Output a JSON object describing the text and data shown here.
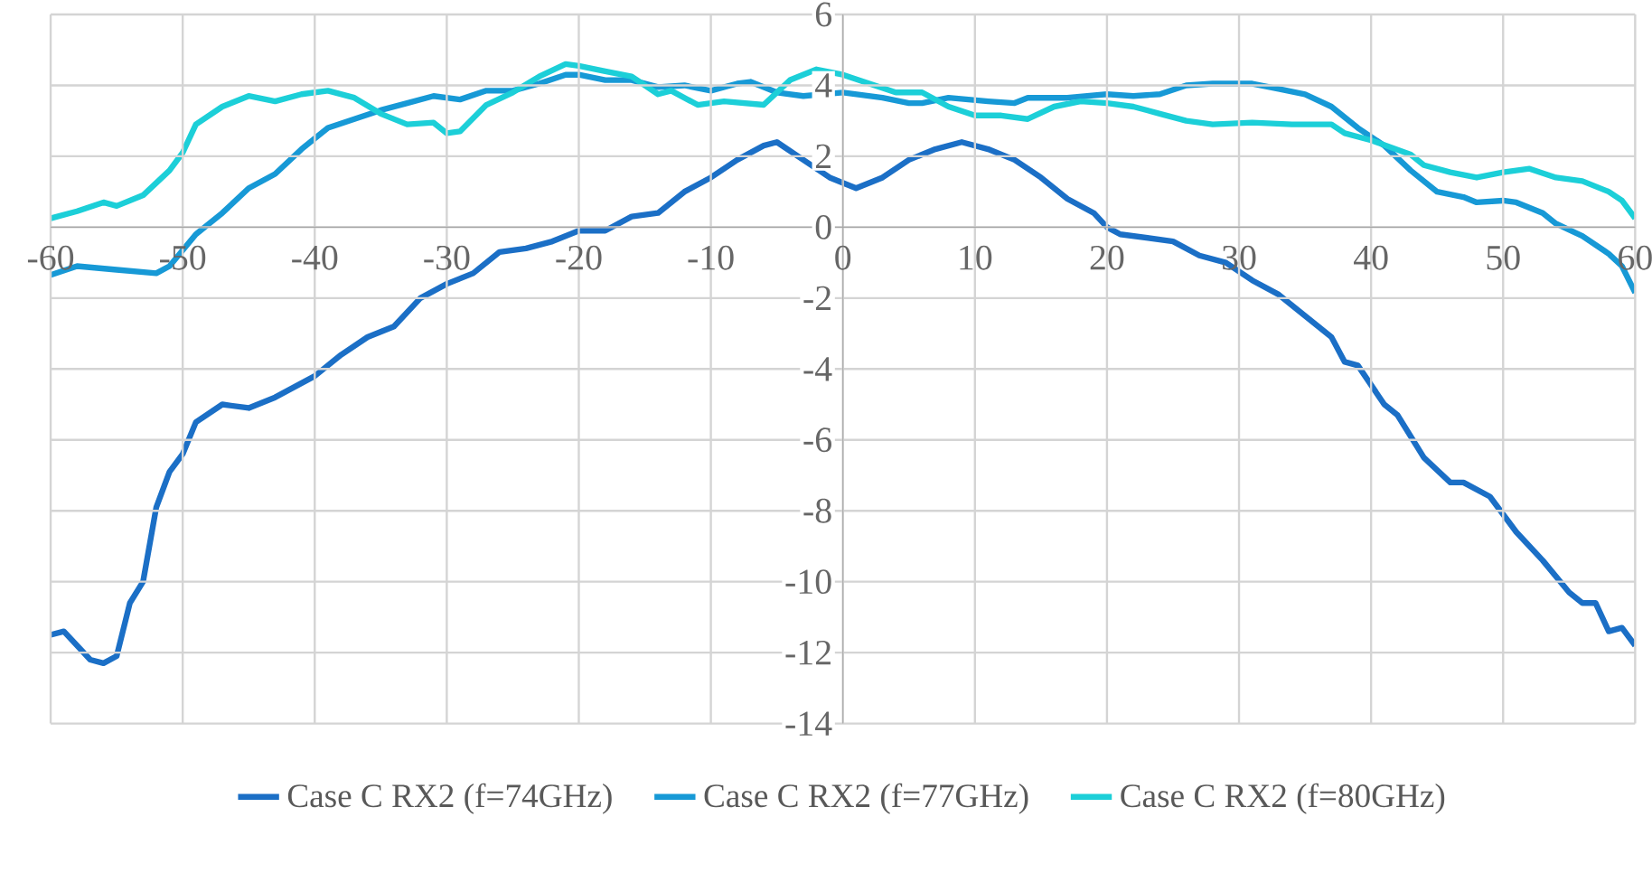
{
  "chart_data": {
    "type": "line",
    "xlim": [
      -60,
      60
    ],
    "ylim": [
      -14,
      6
    ],
    "xticks": [
      -60,
      -50,
      -40,
      -30,
      -20,
      -10,
      0,
      10,
      20,
      30,
      40,
      50,
      60
    ],
    "yticks": [
      -14,
      -12,
      -10,
      -8,
      -6,
      -4,
      -2,
      0,
      2,
      4,
      6
    ],
    "grid": true,
    "legend": "bottom",
    "marker": "none",
    "line_style": "solid",
    "series": [
      {
        "name": "Case C RX2 (f=74GHz)",
        "color": "#1b6fc6",
        "x": [
          -60,
          -59,
          -57,
          -56,
          -55,
          -54,
          -53,
          -52,
          -51,
          -50,
          -49,
          -47,
          -45,
          -43,
          -40,
          -38,
          -36,
          -34,
          -32,
          -30,
          -28,
          -26,
          -24,
          -22,
          -20,
          -18,
          -16,
          -14,
          -12,
          -10,
          -8,
          -6,
          -5,
          -3,
          -1,
          1,
          3,
          5,
          7,
          9,
          11,
          13,
          15,
          17,
          19,
          20,
          21,
          23,
          25,
          27,
          29,
          31,
          33,
          35,
          37,
          38,
          39,
          41,
          42,
          44,
          46,
          47,
          49,
          51,
          53,
          55,
          56,
          57,
          58,
          59,
          60
        ],
        "values": [
          -11.5,
          -11.4,
          -12.2,
          -12.3,
          -12.1,
          -10.6,
          -10.0,
          -7.9,
          -6.9,
          -6.4,
          -5.5,
          -5.0,
          -5.1,
          -4.8,
          -4.2,
          -3.6,
          -3.1,
          -2.8,
          -2.0,
          -1.6,
          -1.3,
          -0.7,
          -0.6,
          -0.4,
          -0.1,
          -0.1,
          0.3,
          0.4,
          1.0,
          1.4,
          1.9,
          2.3,
          2.4,
          1.9,
          1.4,
          1.1,
          1.4,
          1.9,
          2.2,
          2.4,
          2.2,
          1.9,
          1.4,
          0.8,
          0.4,
          0.0,
          -0.2,
          -0.3,
          -0.4,
          -0.8,
          -1.0,
          -1.5,
          -1.9,
          -2.5,
          -3.1,
          -3.8,
          -3.9,
          -5.0,
          -5.3,
          -6.5,
          -7.2,
          -7.2,
          -7.6,
          -8.6,
          -9.4,
          -10.3,
          -10.6,
          -10.6,
          -11.4,
          -11.3,
          -11.8
        ]
      },
      {
        "name": "Case C RX2 (f=77GHz)",
        "color": "#1799d6",
        "x": [
          -60,
          -58,
          -55,
          -52,
          -51,
          -49,
          -47,
          -45,
          -43,
          -41,
          -39,
          -37,
          -35,
          -33,
          -31,
          -29,
          -27,
          -25,
          -23,
          -21,
          -20,
          -18,
          -16,
          -14,
          -12,
          -10,
          -8,
          -7,
          -5,
          -3,
          0,
          3,
          5,
          6,
          8,
          11,
          13,
          14,
          17,
          20,
          22,
          24,
          26,
          28,
          31,
          33,
          35,
          37,
          39,
          41,
          43,
          45,
          47,
          48,
          50,
          51,
          53,
          54,
          56,
          58,
          59,
          60
        ],
        "values": [
          -1.35,
          -1.1,
          -1.2,
          -1.3,
          -1.1,
          -0.2,
          0.4,
          1.1,
          1.5,
          2.2,
          2.8,
          3.05,
          3.3,
          3.5,
          3.7,
          3.6,
          3.85,
          3.85,
          4.05,
          4.3,
          4.3,
          4.15,
          4.15,
          3.95,
          4.0,
          3.85,
          4.05,
          4.1,
          3.8,
          3.7,
          3.8,
          3.65,
          3.5,
          3.5,
          3.65,
          3.55,
          3.5,
          3.65,
          3.65,
          3.75,
          3.7,
          3.75,
          4.0,
          4.05,
          4.05,
          3.9,
          3.75,
          3.4,
          2.8,
          2.3,
          1.6,
          1.0,
          0.85,
          0.7,
          0.75,
          0.7,
          0.4,
          0.1,
          -0.25,
          -0.75,
          -1.1,
          -1.85
        ]
      },
      {
        "name": "Case C RX2 (f=80GHz)",
        "color": "#1ccfd8",
        "x": [
          -60,
          -58,
          -56,
          -55,
          -53,
          -51,
          -50,
          -49,
          -47,
          -45,
          -43,
          -41,
          -39,
          -37,
          -35,
          -33,
          -31,
          -30,
          -29,
          -27,
          -25,
          -23,
          -21,
          -20,
          -18,
          -16,
          -14,
          -13,
          -11,
          -9,
          -6,
          -4,
          -2,
          0,
          2,
          4,
          6,
          8,
          10,
          12,
          14,
          16,
          18,
          20,
          22,
          24,
          26,
          28,
          31,
          34,
          37,
          38,
          40,
          43,
          44,
          46,
          48,
          50,
          52,
          54,
          56,
          58,
          59,
          60
        ],
        "values": [
          0.25,
          0.45,
          0.7,
          0.6,
          0.9,
          1.6,
          2.1,
          2.9,
          3.4,
          3.7,
          3.55,
          3.75,
          3.85,
          3.65,
          3.2,
          2.9,
          2.95,
          2.65,
          2.7,
          3.45,
          3.8,
          4.25,
          4.6,
          4.55,
          4.4,
          4.25,
          3.75,
          3.85,
          3.45,
          3.55,
          3.45,
          4.15,
          4.45,
          4.3,
          4.05,
          3.8,
          3.8,
          3.4,
          3.15,
          3.15,
          3.05,
          3.4,
          3.55,
          3.5,
          3.4,
          3.2,
          3.0,
          2.9,
          2.95,
          2.9,
          2.9,
          2.65,
          2.45,
          2.05,
          1.75,
          1.55,
          1.4,
          1.55,
          1.65,
          1.4,
          1.3,
          1.0,
          0.75,
          0.25
        ]
      }
    ]
  }
}
